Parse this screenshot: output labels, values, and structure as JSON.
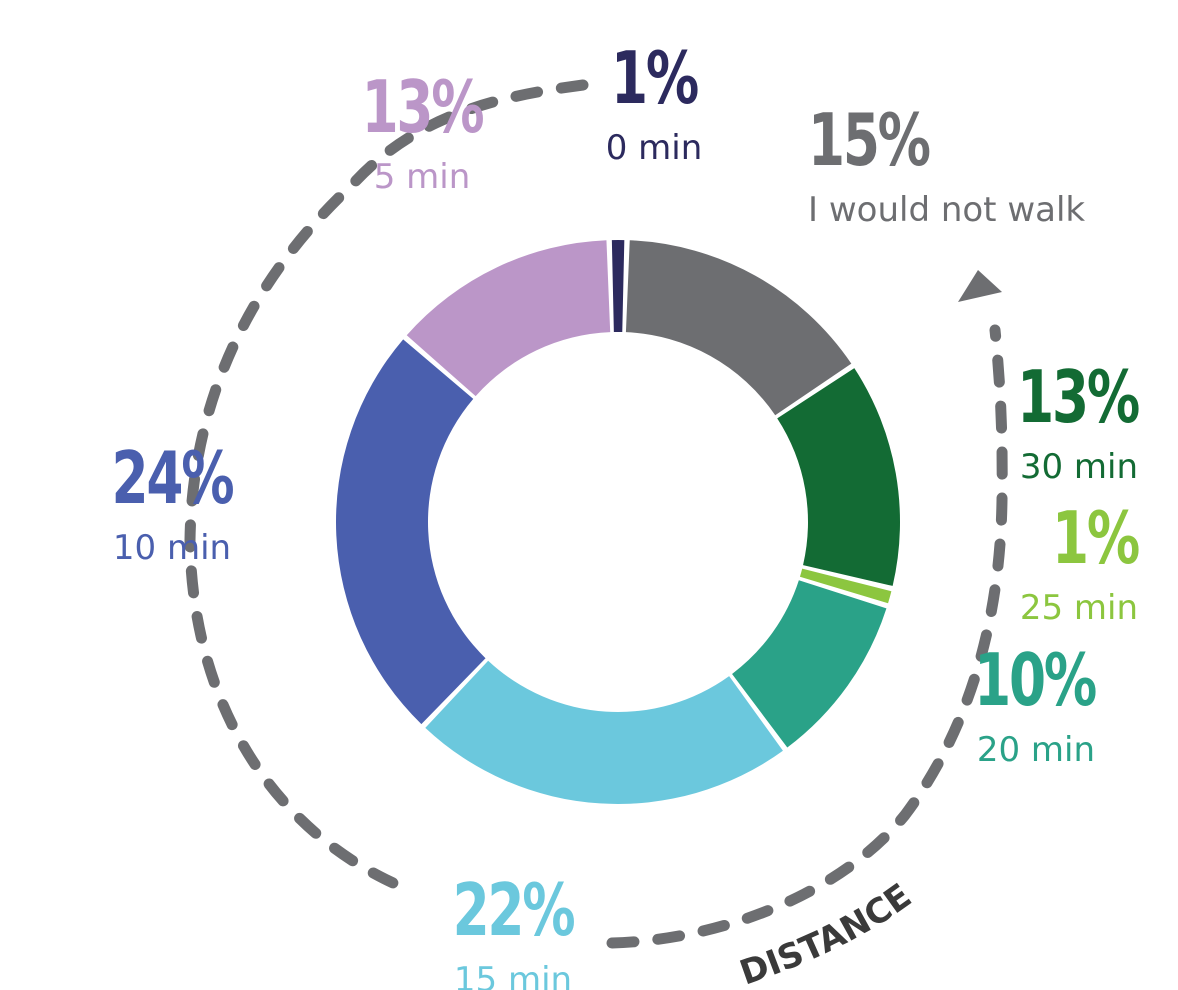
{
  "chart_data": {
    "type": "pie",
    "variant": "donut",
    "title": "",
    "direction_label": "DISTANCE",
    "slices": [
      {
        "value": 1,
        "percent_label": "1%",
        "label": "0 min",
        "color": "#2c2a5e"
      },
      {
        "value": 15,
        "percent_label": "15%",
        "label": "I would not walk",
        "color": "#6d6e71"
      },
      {
        "value": 13,
        "percent_label": "13%",
        "label": "30 min",
        "color": "#136b34"
      },
      {
        "value": 1,
        "percent_label": "1%",
        "label": "25 min",
        "color": "#8cc63f"
      },
      {
        "value": 10,
        "percent_label": "10%",
        "label": "20 min",
        "color": "#2aa288"
      },
      {
        "value": 22,
        "percent_label": "22%",
        "label": "15 min",
        "color": "#6bc8dd"
      },
      {
        "value": 24,
        "percent_label": "24%",
        "label": "10 min",
        "color": "#4a5fae"
      },
      {
        "value": 13,
        "percent_label": "13%",
        "label": "5 min",
        "color": "#bb96c8"
      }
    ],
    "arrow_color": "#6d6e71"
  }
}
